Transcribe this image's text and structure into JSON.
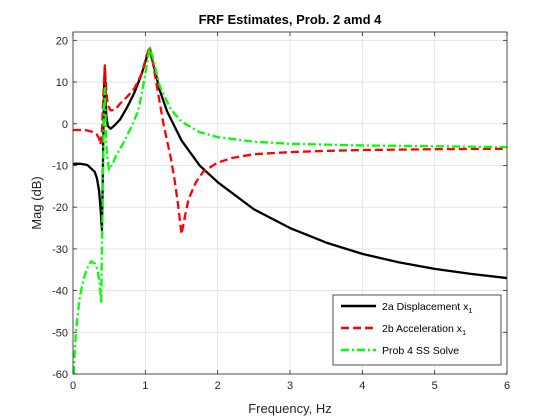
{
  "chart_data": {
    "type": "line",
    "title": "FRF Estimates, Prob. 2 amd 4",
    "xlabel": "Frequency, Hz",
    "ylabel": "Mag (dB)",
    "xlim": [
      0,
      6
    ],
    "ylim": [
      -60,
      22
    ],
    "xticks": [
      0,
      1,
      2,
      3,
      4,
      5,
      6
    ],
    "yticks": [
      -60,
      -50,
      -40,
      -30,
      -20,
      -10,
      0,
      10,
      20
    ],
    "grid": true,
    "legend_position": "bottom-right",
    "series": [
      {
        "name": "2a Displacement x",
        "name_subscript": "1",
        "color": "#000000",
        "style": "solid",
        "x": [
          0,
          0.1,
          0.2,
          0.3,
          0.33,
          0.36,
          0.38,
          0.4,
          0.41,
          0.42,
          0.43,
          0.44,
          0.45,
          0.46,
          0.48,
          0.52,
          0.58,
          0.65,
          0.75,
          0.85,
          0.95,
          1.02,
          1.06,
          1.1,
          1.2,
          1.3,
          1.5,
          1.75,
          2.0,
          2.5,
          3.0,
          3.5,
          4.0,
          4.5,
          5.0,
          5.5,
          6.0
        ],
        "y": [
          -9.6,
          -9.6,
          -9.9,
          -11.5,
          -13,
          -16,
          -20,
          -25.5,
          -15,
          -2,
          8,
          13.5,
          7,
          2,
          -0.5,
          -1.2,
          -0.3,
          1,
          4,
          7.5,
          12,
          16,
          18,
          15,
          8,
          3,
          -4,
          -10,
          -14,
          -20.5,
          -25,
          -28.5,
          -31.2,
          -33.2,
          -34.8,
          -36,
          -37
        ]
      },
      {
        "name": "2b Acceleration x",
        "name_subscript": "1",
        "color": "#ff0000",
        "style": "dashed",
        "x": [
          0,
          0.1,
          0.2,
          0.28,
          0.33,
          0.36,
          0.38,
          0.4,
          0.42,
          0.44,
          0.46,
          0.48,
          0.52,
          0.58,
          0.65,
          0.75,
          0.85,
          0.95,
          1.02,
          1.06,
          1.1,
          1.15,
          1.2,
          1.25,
          1.3,
          1.35,
          1.4,
          1.45,
          1.5,
          1.55,
          1.6,
          1.7,
          1.8,
          2.0,
          2.2,
          2.5,
          3.0,
          3.5,
          4.0,
          5.0,
          6.0
        ],
        "y": [
          -1.5,
          -1.5,
          -1.6,
          -2,
          -2.6,
          -3.5,
          -5,
          -2,
          7,
          14,
          8,
          4.5,
          3.2,
          3.3,
          4.8,
          6.5,
          8.5,
          12,
          16.5,
          18.5,
          15,
          10,
          5,
          0,
          -4,
          -8,
          -13,
          -19,
          -26.5,
          -22,
          -18,
          -14,
          -11.5,
          -9.3,
          -8.2,
          -7.3,
          -6.8,
          -6.5,
          -6.3,
          -6.1,
          -6.0
        ]
      },
      {
        "name": "Prob 4 SS Solve",
        "color": "#00ff00",
        "style": "dashdot",
        "x": [
          0.01,
          0.02,
          0.04,
          0.07,
          0.1,
          0.15,
          0.2,
          0.25,
          0.3,
          0.34,
          0.37,
          0.39,
          0.4,
          0.41,
          0.42,
          0.43,
          0.44,
          0.46,
          0.48,
          0.5,
          0.55,
          0.6,
          0.7,
          0.8,
          0.9,
          0.97,
          1.03,
          1.06,
          1.1,
          1.2,
          1.35,
          1.5,
          1.75,
          2.0,
          2.5,
          3.0,
          3.5,
          4.0,
          5.0,
          6.0
        ],
        "y": [
          -60,
          -56,
          -50,
          -45,
          -41,
          -37,
          -34.5,
          -33,
          -33.5,
          -35,
          -38.5,
          -43,
          -30,
          -20,
          -5,
          5,
          8.5,
          -5,
          -9,
          -11,
          -9.5,
          -7.5,
          -4.5,
          -1,
          3,
          9,
          15,
          18.5,
          16,
          9,
          3.5,
          0.5,
          -2,
          -3.2,
          -4.3,
          -4.8,
          -5.0,
          -5.2,
          -5.4,
          -5.6
        ]
      }
    ]
  }
}
